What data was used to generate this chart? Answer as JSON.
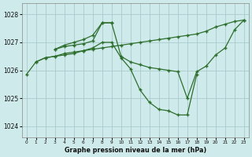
{
  "bg_color": "#ceeaea",
  "grid_color": "#aacccc",
  "line_color": "#2d6e2d",
  "marker_color": "#2d6e2d",
  "xlabel": "Graphe pression niveau de la mer (hPa)",
  "ylim": [
    1023.6,
    1028.4
  ],
  "xlim": [
    -0.5,
    23.5
  ],
  "yticks": [
    1024,
    1025,
    1026,
    1027,
    1028
  ],
  "xticks": [
    0,
    1,
    2,
    3,
    4,
    5,
    6,
    7,
    8,
    9,
    10,
    11,
    12,
    13,
    14,
    15,
    16,
    17,
    18,
    19,
    20,
    21,
    22,
    23
  ],
  "series": [
    {
      "x": [
        0,
        1,
        2,
        3,
        4,
        5,
        6,
        7,
        8,
        9,
        10,
        11,
        12,
        13,
        14,
        15,
        16,
        17,
        18
      ],
      "y": [
        1025.85,
        1026.3,
        1026.45,
        1026.5,
        1026.55,
        1026.6,
        1026.7,
        1026.8,
        1027.0,
        1027.0,
        1026.45,
        1026.05,
        1025.3,
        1024.85,
        1024.6,
        1024.55,
        1024.4,
        1024.4,
        1025.85
      ]
    },
    {
      "x": [
        3,
        4,
        5,
        6,
        7,
        8,
        9,
        10,
        11,
        12,
        13,
        14,
        15,
        16,
        17,
        18,
        19,
        20,
        21,
        22,
        23
      ],
      "y": [
        1026.75,
        1026.85,
        1026.9,
        1026.95,
        1027.05,
        1027.7,
        1027.7,
        1026.5,
        1026.3,
        1026.2,
        1026.1,
        1026.05,
        1026.0,
        1025.95,
        1025.0,
        1025.95,
        1026.15,
        1026.55,
        1026.8,
        1027.45,
        1027.8
      ]
    },
    {
      "x": [
        1,
        2,
        3,
        4,
        5,
        6,
        7,
        8,
        9,
        10,
        11,
        12,
        13,
        14,
        15,
        16,
        17,
        18,
        19,
        20,
        21,
        22,
        23
      ],
      "y": [
        1026.3,
        1026.45,
        1026.5,
        1026.6,
        1026.65,
        1026.7,
        1026.75,
        1026.8,
        1026.85,
        1026.9,
        1026.95,
        1027.0,
        1027.05,
        1027.1,
        1027.15,
        1027.2,
        1027.25,
        1027.3,
        1027.4,
        1027.55,
        1027.65,
        1027.75,
        1027.8
      ]
    },
    {
      "x": [
        3,
        4,
        5,
        6,
        7,
        8,
        9
      ],
      "y": [
        1026.75,
        1026.9,
        1027.0,
        1027.1,
        1027.25,
        1027.7,
        1027.7
      ]
    }
  ]
}
